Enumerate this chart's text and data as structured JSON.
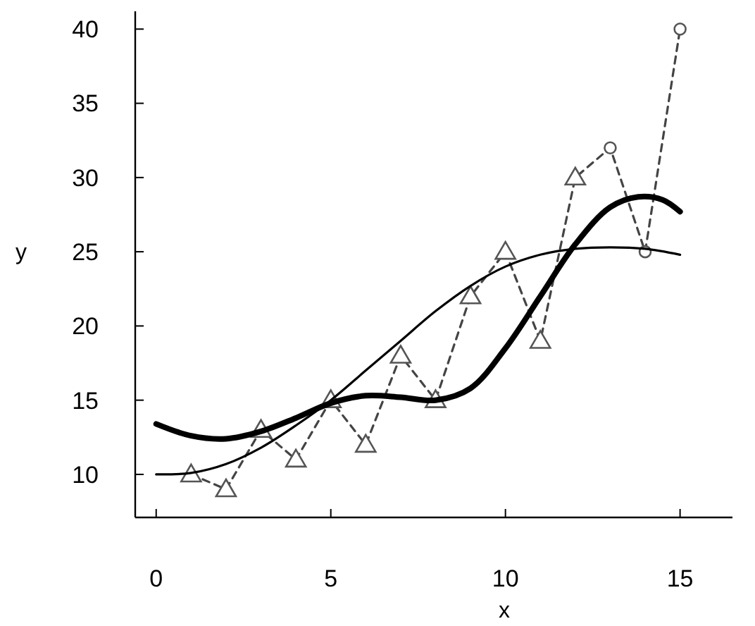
{
  "chart_data": {
    "type": "line",
    "xlabel": "x",
    "ylabel": "y",
    "xlim": [
      -0.6,
      16.5
    ],
    "ylim": [
      7.1,
      41.2
    ],
    "xticks": [
      0,
      5,
      10,
      15
    ],
    "yticks": [
      10,
      15,
      20,
      25,
      30,
      35,
      40
    ],
    "grid": false,
    "series": [
      {
        "color": "#444444",
        "line_style": "dashed",
        "marker": "none",
        "x": [
          1,
          2,
          3,
          4,
          5,
          6,
          7,
          8,
          9,
          10,
          11,
          12,
          13,
          14,
          15
        ],
        "values": [
          10,
          9,
          13,
          11,
          15,
          12,
          18,
          15,
          22,
          25,
          19,
          30,
          32,
          25,
          40
        ]
      },
      {
        "type": "scatter",
        "color": "#555555",
        "marker": "triangle",
        "x": [
          1,
          2,
          3,
          4,
          5,
          6,
          7,
          8,
          9,
          10,
          11,
          12
        ],
        "values": [
          10,
          9,
          13,
          11,
          15,
          12,
          18,
          15,
          22,
          25,
          19,
          30
        ]
      },
      {
        "type": "scatter",
        "color": "#555555",
        "marker": "circle",
        "x": [
          13,
          14,
          15
        ],
        "values": [
          32,
          25,
          40
        ]
      },
      {
        "type": "line",
        "color": "#000000",
        "line_style": "solid",
        "marker": "none",
        "x": [
          0,
          1,
          2,
          3,
          4,
          5,
          6,
          7,
          8,
          9,
          10,
          11,
          12,
          13,
          14,
          15
        ],
        "values": [
          10,
          10.1,
          10.7,
          11.8,
          13.3,
          15,
          17,
          19,
          21,
          22.7,
          24,
          24.8,
          25.2,
          25.3,
          25.2,
          24.8
        ]
      },
      {
        "type": "line",
        "color": "#000000",
        "line_style": "solid",
        "marker": "none",
        "x": [
          0,
          1,
          2,
          3,
          4,
          5,
          6,
          7,
          8,
          9,
          10,
          11,
          12,
          13,
          13.8,
          14.5,
          15
        ],
        "values": [
          13.4,
          12.6,
          12.4,
          12.9,
          13.8,
          14.8,
          15.3,
          15.2,
          15,
          15.8,
          18.5,
          22,
          25.5,
          28,
          28.7,
          28.5,
          27.7
        ]
      }
    ]
  }
}
